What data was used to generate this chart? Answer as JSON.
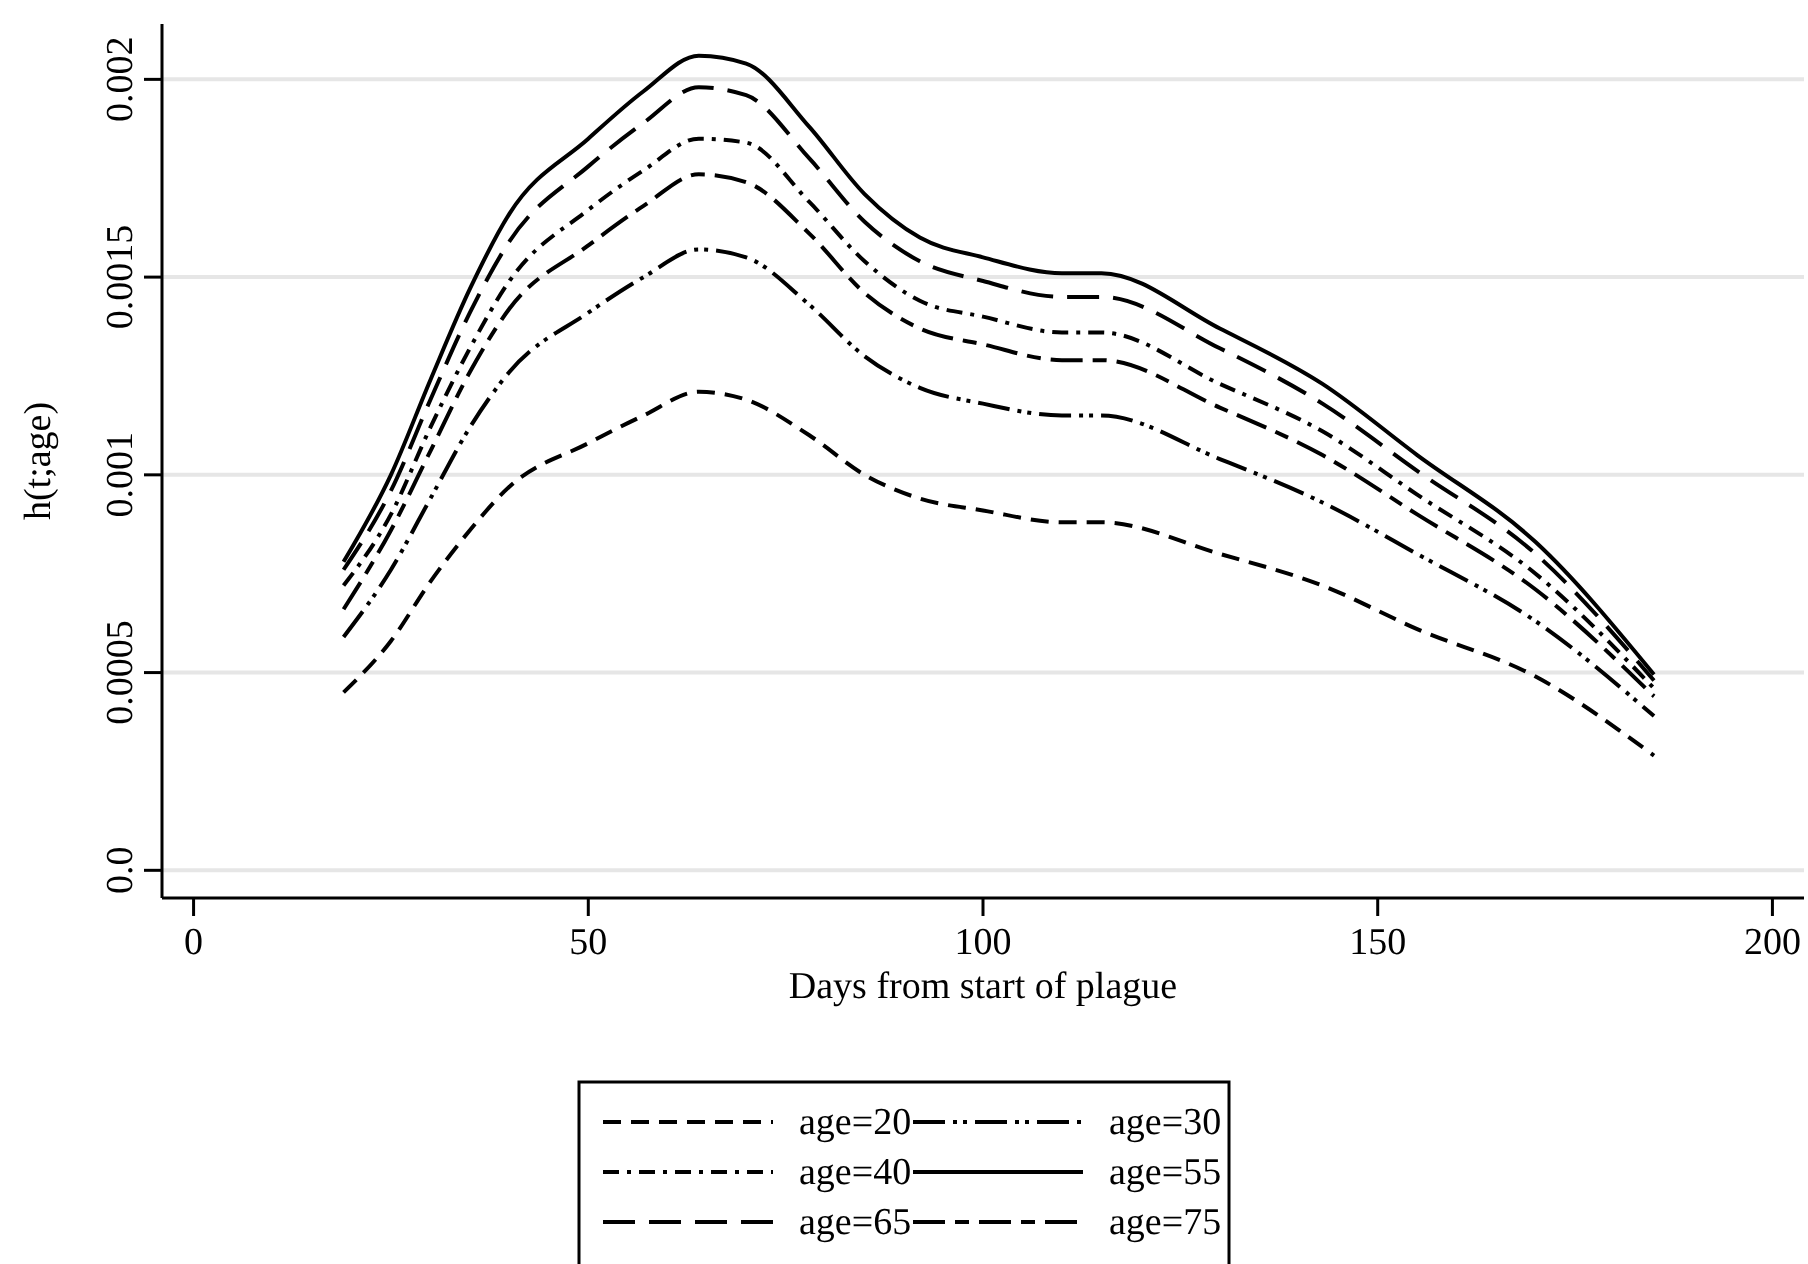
{
  "chart_data": {
    "type": "line",
    "xlabel": "Days from start of plague",
    "ylabel": "h(t;age)",
    "x": [
      19,
      25,
      30,
      35,
      40,
      50,
      57,
      64,
      70,
      78,
      85,
      92,
      100,
      110,
      115,
      130,
      143,
      155,
      170,
      185
    ],
    "xlim": [
      -4,
      204
    ],
    "xticks": [
      0,
      50,
      100,
      150,
      200
    ],
    "ylim": [
      -7e-05,
      0.00214
    ],
    "yticks": [
      {
        "value": 0,
        "label": "0.0"
      },
      0.0005,
      0.001,
      0.0015,
      0.002
    ],
    "grid": "y",
    "legend": "bottom",
    "marker": "none",
    "series": [
      {
        "name": "age=20",
        "color": "#000000",
        "line_style": "dashed",
        "values": [
          0.00045,
          0.00058,
          0.00073,
          0.00086,
          0.00097,
          0.00108,
          0.00115,
          0.00121,
          0.00119,
          0.0011,
          0.001,
          0.00094,
          0.00091,
          0.00088,
          0.00088,
          0.0008,
          0.00072,
          0.00061,
          0.00049,
          0.00029
        ]
      },
      {
        "name": "age=30",
        "color": "#000000",
        "line_style": "longdashdotdot",
        "values": [
          0.00059,
          0.00076,
          0.00094,
          0.00112,
          0.00126,
          0.00141,
          0.0015,
          0.00157,
          0.00155,
          0.00143,
          0.0013,
          0.00122,
          0.00118,
          0.00115,
          0.00115,
          0.00104,
          0.00093,
          0.0008,
          0.00063,
          0.00039
        ]
      },
      {
        "name": "age=40",
        "color": "#000000",
        "line_style": "dashdot",
        "values": [
          0.00072,
          0.0009,
          0.00112,
          0.00132,
          0.00149,
          0.00167,
          0.00177,
          0.00185,
          0.00184,
          0.00169,
          0.00154,
          0.00144,
          0.0014,
          0.00136,
          0.00136,
          0.00123,
          0.00111,
          0.00095,
          0.00075,
          0.00046
        ]
      },
      {
        "name": "age=55",
        "color": "#000000",
        "line_style": "solid",
        "values": [
          0.00078,
          0.001,
          0.00124,
          0.00147,
          0.00166,
          0.00185,
          0.00197,
          0.00206,
          0.00204,
          0.00188,
          0.00171,
          0.0016,
          0.00155,
          0.00151,
          0.00151,
          0.00137,
          0.00123,
          0.00105,
          0.00083,
          0.000495
        ]
      },
      {
        "name": "age=65",
        "color": "#000000",
        "line_style": "longdash",
        "values": [
          0.00076,
          0.00096,
          0.00119,
          0.00141,
          0.00159,
          0.00178,
          0.00189,
          0.00198,
          0.00196,
          0.0018,
          0.00164,
          0.00154,
          0.00149,
          0.00145,
          0.00145,
          0.00132,
          0.00118,
          0.00101,
          0.0008,
          0.00048
        ]
      },
      {
        "name": "age=75",
        "color": "#000000",
        "line_style": "longdashdash",
        "values": [
          0.00066,
          0.00086,
          0.00106,
          0.00126,
          0.00142,
          0.00158,
          0.00168,
          0.00176,
          0.00174,
          0.00161,
          0.00146,
          0.00137,
          0.00133,
          0.00129,
          0.00129,
          0.00117,
          0.00105,
          0.0009,
          0.00071,
          0.00044
        ]
      }
    ]
  }
}
